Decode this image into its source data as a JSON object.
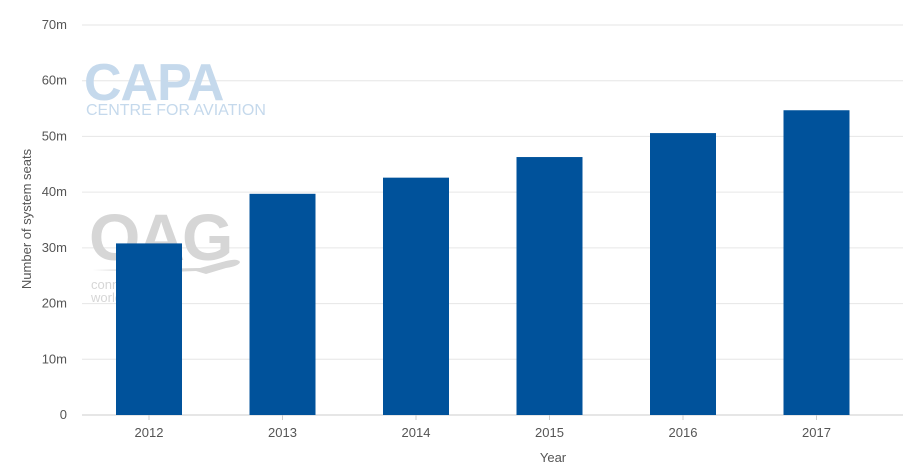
{
  "chart_data": {
    "type": "bar",
    "categories": [
      "2012",
      "2013",
      "2014",
      "2015",
      "2016",
      "2017"
    ],
    "values": [
      30.8,
      39.7,
      42.6,
      46.3,
      50.6,
      54.7
    ],
    "xlabel": "Year",
    "ylabel": "Number of system seats",
    "ylim": [
      0,
      70
    ],
    "yticks": [
      0,
      10,
      20,
      30,
      40,
      50,
      60,
      70
    ],
    "ytick_labels": [
      "0",
      "10m",
      "20m",
      "30m",
      "40m",
      "50m",
      "60m",
      "70m"
    ],
    "grid": true,
    "legend": "none",
    "colors": {
      "bar": "#00529b",
      "grid": "#e6e6e6",
      "axis": "#cccccc"
    }
  },
  "watermarks": {
    "capa_logo": "CAPA",
    "capa_subtitle": "CENTRE FOR AVIATION",
    "oag_logo": "OAG",
    "oag_tagline_1": "connecting the",
    "oag_tagline_2": "world",
    "capa_color": "#c5d9ec",
    "oag_color": "#d6d6d6"
  }
}
